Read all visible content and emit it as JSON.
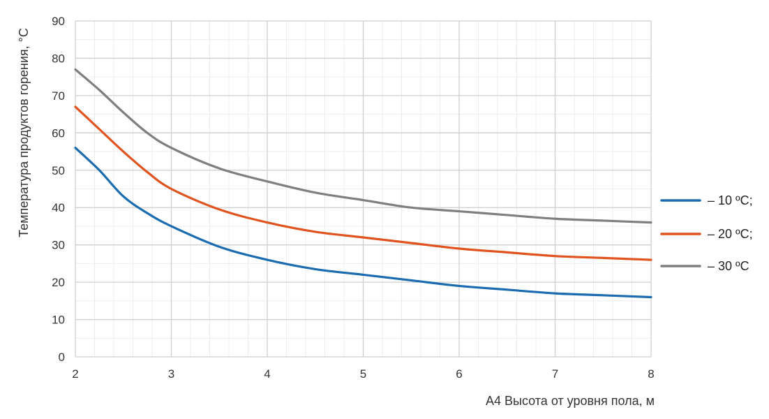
{
  "chart_data": {
    "type": "line",
    "title": "",
    "xlabel": "А4 Высота от уровня пола, м",
    "ylabel": "Температура продуктов горения, °С",
    "xlim": [
      2,
      8
    ],
    "ylim": [
      0,
      90
    ],
    "x_ticks": [
      "2",
      "3",
      "4",
      "5",
      "6",
      "7",
      "8"
    ],
    "y_ticks": [
      "0",
      "10",
      "20",
      "30",
      "40",
      "50",
      "60",
      "70",
      "80",
      "90"
    ],
    "grid": true,
    "legend": "right",
    "series": [
      {
        "name": "– 10 ºС;",
        "color": "#1a6bb0",
        "x": [
          2,
          2.25,
          2.5,
          2.75,
          3,
          3.5,
          4,
          4.5,
          5,
          5.5,
          6,
          6.5,
          7,
          7.5,
          8
        ],
        "y": [
          56,
          50,
          43,
          38.5,
          35,
          29.5,
          26,
          23.5,
          22,
          20.5,
          19,
          18,
          17,
          16.5,
          16
        ]
      },
      {
        "name": "– 20 ºС;",
        "color": "#e0531f",
        "x": [
          2,
          2.25,
          2.5,
          2.75,
          3,
          3.5,
          4,
          4.5,
          5,
          5.5,
          6,
          6.5,
          7,
          7.5,
          8
        ],
        "y": [
          67,
          61,
          55,
          49.5,
          45,
          39.5,
          36,
          33.5,
          32,
          30.5,
          29,
          28,
          27,
          26.5,
          26
        ]
      },
      {
        "name": "– 30 ºС",
        "color": "#7f7f7f",
        "x": [
          2,
          2.25,
          2.5,
          2.75,
          3,
          3.5,
          4,
          4.5,
          5,
          5.5,
          6,
          6.5,
          7,
          7.5,
          8
        ],
        "y": [
          77,
          71.5,
          65.5,
          60,
          56,
          50.5,
          47,
          44,
          42,
          40,
          39,
          38,
          37,
          36.5,
          36
        ]
      }
    ]
  }
}
